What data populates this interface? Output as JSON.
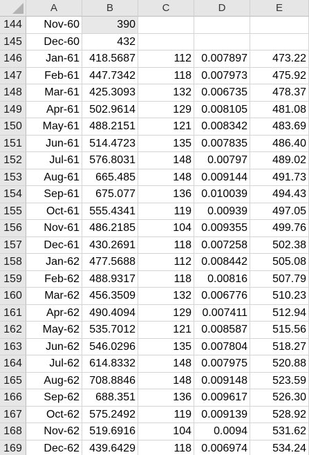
{
  "columns": [
    "A",
    "B",
    "C",
    "D",
    "E"
  ],
  "rows": [
    {
      "n": "144",
      "a": "Nov-60",
      "b": "390",
      "c": "",
      "d": "",
      "e": ""
    },
    {
      "n": "145",
      "a": "Dec-60",
      "b": "432",
      "c": "",
      "d": "",
      "e": ""
    },
    {
      "n": "146",
      "a": "Jan-61",
      "b": "418.5687",
      "c": "112",
      "d": "0.007897",
      "e": "473.22"
    },
    {
      "n": "147",
      "a": "Feb-61",
      "b": "447.7342",
      "c": "118",
      "d": "0.007973",
      "e": "475.92"
    },
    {
      "n": "148",
      "a": "Mar-61",
      "b": "425.3093",
      "c": "132",
      "d": "0.006735",
      "e": "478.37"
    },
    {
      "n": "149",
      "a": "Apr-61",
      "b": "502.9614",
      "c": "129",
      "d": "0.008105",
      "e": "481.08"
    },
    {
      "n": "150",
      "a": "May-61",
      "b": "488.2151",
      "c": "121",
      "d": "0.008342",
      "e": "483.69"
    },
    {
      "n": "151",
      "a": "Jun-61",
      "b": "514.4723",
      "c": "135",
      "d": "0.007835",
      "e": "486.40"
    },
    {
      "n": "152",
      "a": "Jul-61",
      "b": "576.8031",
      "c": "148",
      "d": "0.00797",
      "e": "489.02"
    },
    {
      "n": "153",
      "a": "Aug-61",
      "b": "665.485",
      "c": "148",
      "d": "0.009144",
      "e": "491.73"
    },
    {
      "n": "154",
      "a": "Sep-61",
      "b": "675.077",
      "c": "136",
      "d": "0.010039",
      "e": "494.43"
    },
    {
      "n": "155",
      "a": "Oct-61",
      "b": "555.4341",
      "c": "119",
      "d": "0.00939",
      "e": "497.05"
    },
    {
      "n": "156",
      "a": "Nov-61",
      "b": "486.2185",
      "c": "104",
      "d": "0.009355",
      "e": "499.76"
    },
    {
      "n": "157",
      "a": "Dec-61",
      "b": "430.2691",
      "c": "118",
      "d": "0.007258",
      "e": "502.38"
    },
    {
      "n": "158",
      "a": "Jan-62",
      "b": "477.5688",
      "c": "112",
      "d": "0.008442",
      "e": "505.08"
    },
    {
      "n": "159",
      "a": "Feb-62",
      "b": "488.9317",
      "c": "118",
      "d": "0.00816",
      "e": "507.79"
    },
    {
      "n": "160",
      "a": "Mar-62",
      "b": "456.3509",
      "c": "132",
      "d": "0.006776",
      "e": "510.23"
    },
    {
      "n": "161",
      "a": "Apr-62",
      "b": "490.4094",
      "c": "129",
      "d": "0.007411",
      "e": "512.94"
    },
    {
      "n": "162",
      "a": "May-62",
      "b": "535.7012",
      "c": "121",
      "d": "0.008587",
      "e": "515.56"
    },
    {
      "n": "163",
      "a": "Jun-62",
      "b": "546.0296",
      "c": "135",
      "d": "0.007804",
      "e": "518.27"
    },
    {
      "n": "164",
      "a": "Jul-62",
      "b": "614.8332",
      "c": "148",
      "d": "0.007975",
      "e": "520.88"
    },
    {
      "n": "165",
      "a": "Aug-62",
      "b": "708.8846",
      "c": "148",
      "d": "0.009148",
      "e": "523.59"
    },
    {
      "n": "166",
      "a": "Sep-62",
      "b": "688.351",
      "c": "136",
      "d": "0.009617",
      "e": "526.30"
    },
    {
      "n": "167",
      "a": "Oct-62",
      "b": "575.2492",
      "c": "119",
      "d": "0.009139",
      "e": "528.92"
    },
    {
      "n": "168",
      "a": "Nov-62",
      "b": "519.6916",
      "c": "104",
      "d": "0.0094",
      "e": "531.62"
    },
    {
      "n": "169",
      "a": "Dec-62",
      "b": "439.6429",
      "c": "118",
      "d": "0.006974",
      "e": "534.24"
    }
  ],
  "colors": {
    "header_bg": "#e6e6e6",
    "gridline": "#d4d4d4",
    "shaded_cell": "#e8e8e8"
  },
  "shaded_cells": [
    "B144"
  ]
}
